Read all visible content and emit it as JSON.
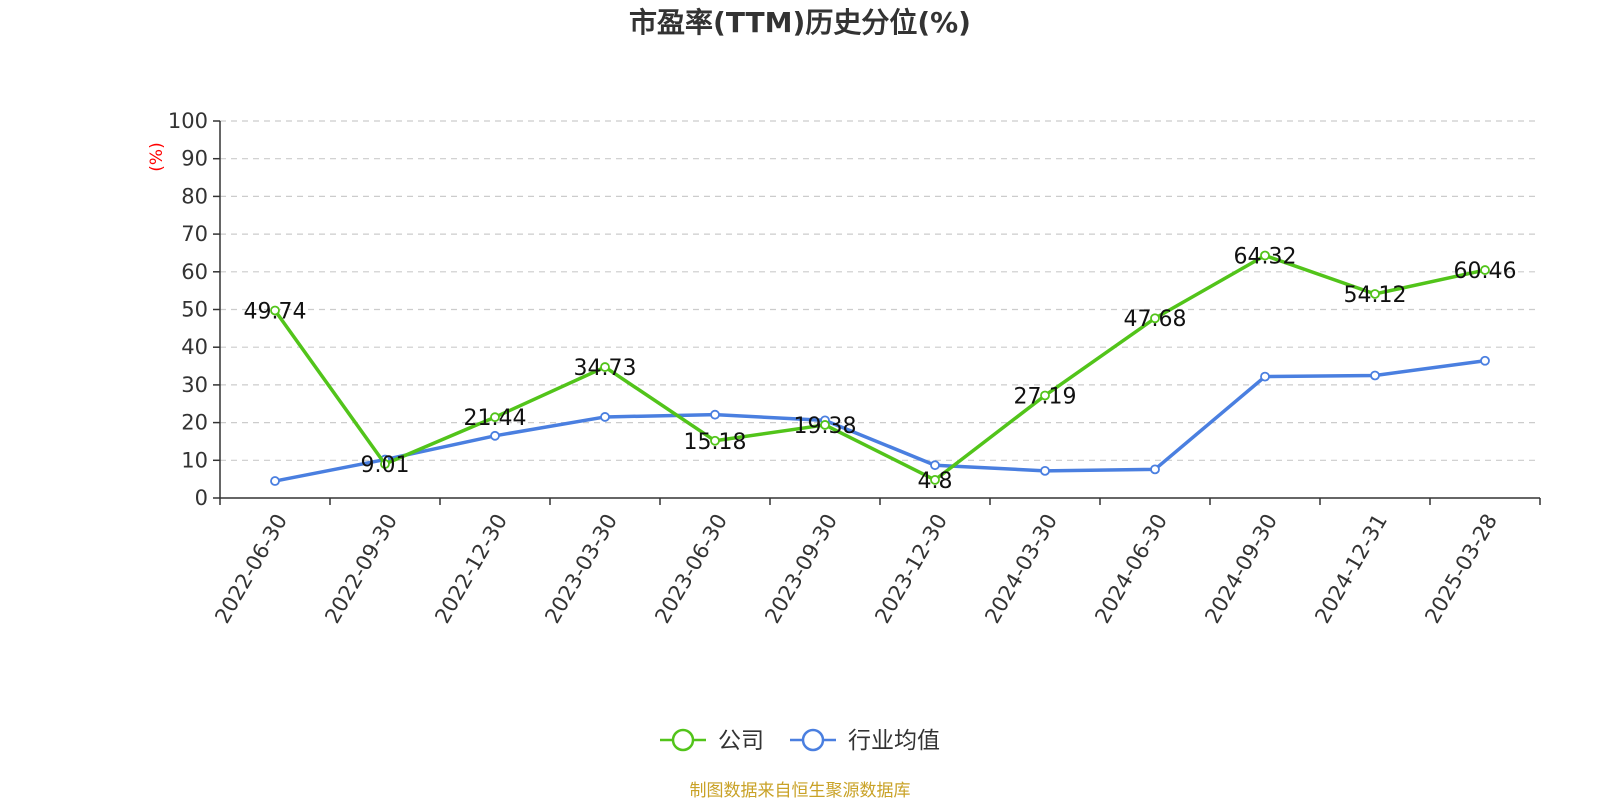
{
  "chart_data": {
    "type": "line",
    "title": "市盈率(TTM)历史分位(%)",
    "ylabel": "(%)",
    "xlabel": "",
    "ylim": [
      0,
      100
    ],
    "yticks": [
      0,
      10,
      20,
      30,
      40,
      50,
      60,
      70,
      80,
      90,
      100
    ],
    "grid": true,
    "legend_position": "bottom",
    "categories": [
      "2022-06-30",
      "2022-09-30",
      "2022-12-30",
      "2023-03-30",
      "2023-06-30",
      "2023-09-30",
      "2023-12-30",
      "2024-03-30",
      "2024-06-30",
      "2024-09-30",
      "2024-12-31",
      "2025-03-28"
    ],
    "series": [
      {
        "name": "公司",
        "color": "#52c41a",
        "values": [
          49.74,
          9.01,
          21.44,
          34.73,
          15.18,
          19.38,
          4.8,
          27.19,
          47.68,
          64.32,
          54.12,
          60.46
        ],
        "labels": [
          "49.74",
          "9.01",
          "21.44",
          "34.73",
          "15.18",
          "19.38",
          "4.8",
          "27.19",
          "47.68",
          "64.32",
          "54.12",
          "60.46"
        ]
      },
      {
        "name": "行业均值",
        "color": "#4a7fe0",
        "values": [
          4.5,
          10.2,
          16.5,
          21.5,
          22.1,
          20.6,
          8.7,
          7.2,
          7.6,
          32.2,
          32.5,
          36.4
        ]
      }
    ],
    "source": "制图数据来自恒生聚源数据库",
    "colors": {
      "axis": "#333333",
      "grid": "#cccccc",
      "ylabel": "#ff0000",
      "source": "#c9a227"
    }
  }
}
